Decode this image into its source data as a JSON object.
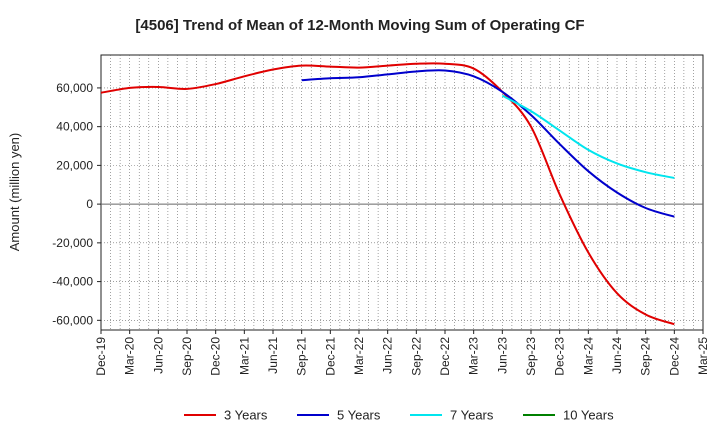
{
  "chart_data": {
    "type": "line",
    "title": "[4506]  Trend of Mean of 12-Month Moving Sum of Operating CF",
    "xlabel": "",
    "ylabel": "Amount (million yen)",
    "ylim": [
      -65000,
      77000
    ],
    "yticks": [
      -60000,
      -40000,
      -20000,
      0,
      20000,
      40000,
      60000
    ],
    "ytick_labels": [
      "-60,000",
      "-40,000",
      "-20,000",
      "0",
      "20,000",
      "40,000",
      "60,000"
    ],
    "categories": [
      "Dec-19",
      "Mar-20",
      "Jun-20",
      "Sep-20",
      "Dec-20",
      "Mar-21",
      "Jun-21",
      "Sep-21",
      "Dec-21",
      "Mar-22",
      "Jun-22",
      "Sep-22",
      "Dec-22",
      "Mar-23",
      "Jun-23",
      "Sep-23",
      "Dec-23",
      "Mar-24",
      "Jun-24",
      "Sep-24",
      "Dec-24",
      "Mar-25"
    ],
    "grid": true,
    "legend_position": "bottom",
    "series": [
      {
        "name": "3 Years",
        "color": "#e00000",
        "values": [
          57500,
          60000,
          60500,
          59500,
          62000,
          66000,
          69500,
          71500,
          71000,
          70500,
          71500,
          72500,
          72500,
          70000,
          58000,
          40000,
          5000,
          -25000,
          -46000,
          -57000,
          -62000,
          null
        ]
      },
      {
        "name": "5 Years",
        "color": "#0000cc",
        "values": [
          null,
          null,
          null,
          null,
          null,
          null,
          null,
          64000,
          65000,
          65500,
          67000,
          68500,
          69000,
          66000,
          58000,
          46000,
          31000,
          17000,
          6000,
          -2000,
          -6500,
          null
        ]
      },
      {
        "name": "7 Years",
        "color": "#00e5ee",
        "values": [
          null,
          null,
          null,
          null,
          null,
          null,
          null,
          null,
          null,
          null,
          null,
          null,
          null,
          null,
          56000,
          48000,
          38000,
          28000,
          21000,
          16500,
          13500,
          null
        ]
      },
      {
        "name": "10 Years",
        "color": "#008000",
        "values": [
          null,
          null,
          null,
          null,
          null,
          null,
          null,
          null,
          null,
          null,
          null,
          null,
          null,
          null,
          null,
          null,
          null,
          null,
          null,
          null,
          null,
          null
        ]
      }
    ]
  }
}
